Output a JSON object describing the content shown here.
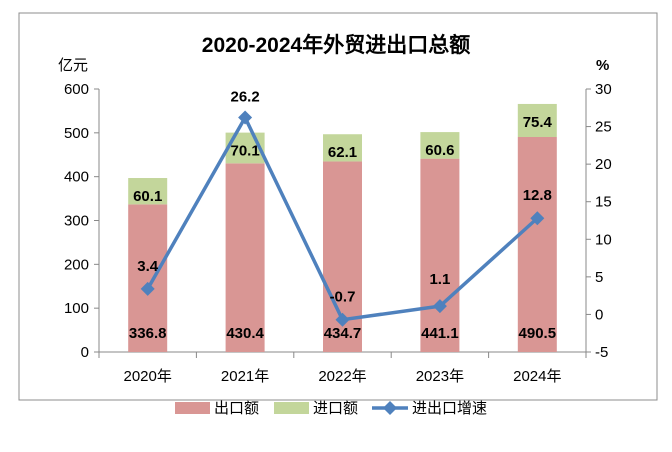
{
  "chart_data": {
    "type": "bar+line",
    "title": "2020-2024年外贸进出口总额",
    "ylabel_left": "亿元",
    "ylabel_right": "%",
    "categories": [
      "2020年",
      "2021年",
      "2022年",
      "2023年",
      "2024年"
    ],
    "ylim_left": [
      0,
      600
    ],
    "yticks_left": [
      0,
      100,
      200,
      300,
      400,
      500,
      600
    ],
    "ylim_right": [
      -5,
      30
    ],
    "yticks_right": [
      -5,
      0,
      5,
      10,
      15,
      20,
      25,
      30
    ],
    "stacked": true,
    "grid": false,
    "legend_position": "bottom",
    "series": [
      {
        "name": "出口额",
        "type": "bar",
        "color": "#D99694",
        "values": [
          336.8,
          430.4,
          434.7,
          441.1,
          490.5
        ]
      },
      {
        "name": "进口额",
        "type": "bar",
        "color": "#C3D69B",
        "values": [
          60.1,
          70.1,
          62.1,
          60.6,
          75.4
        ]
      },
      {
        "name": "进出口增速",
        "type": "line",
        "axis": "right",
        "color": "#4F81BD",
        "marker": "diamond",
        "values": [
          3.4,
          26.2,
          -0.7,
          1.1,
          12.8
        ]
      }
    ]
  }
}
